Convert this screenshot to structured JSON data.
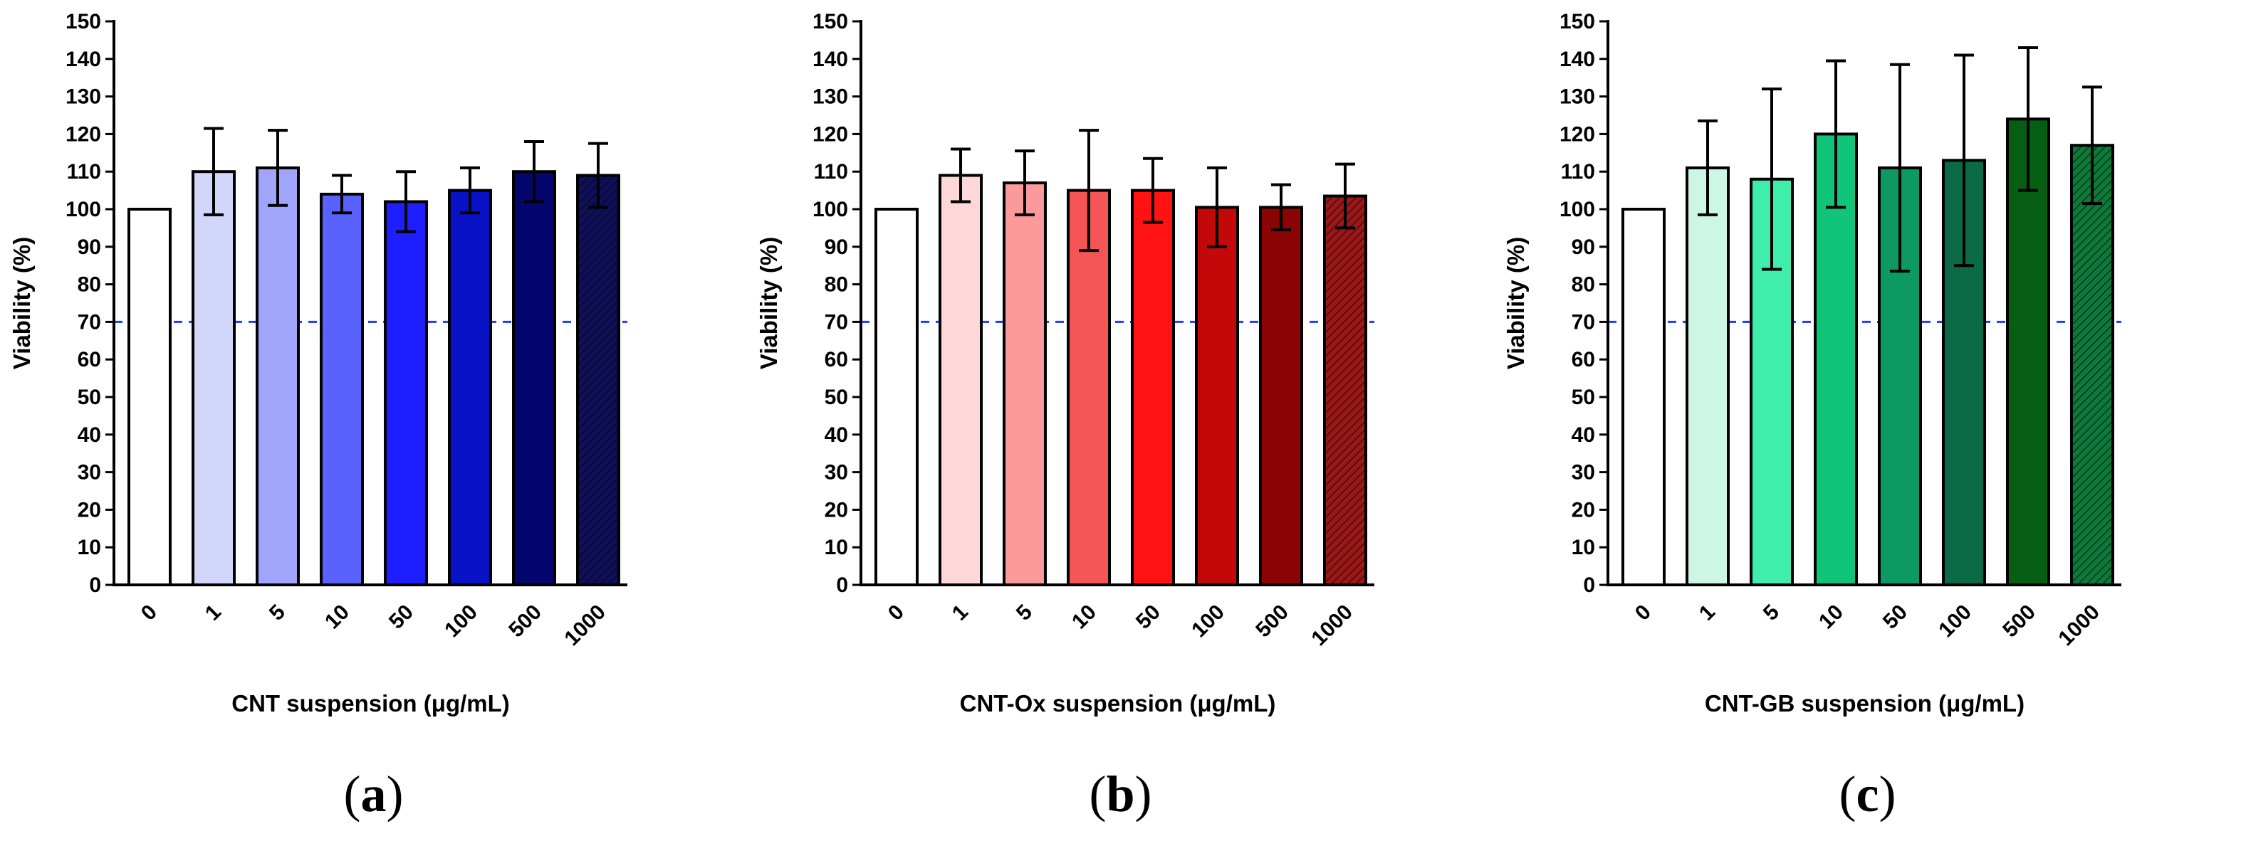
{
  "chart_data": [
    {
      "type": "bar",
      "panel_label": "a",
      "xlabel": "CNT suspension (μg/mL)",
      "ylabel": "Viability (%)",
      "ylim": [
        0,
        150
      ],
      "ytick_step": 10,
      "threshold": 70,
      "categories": [
        "0",
        "1",
        "5",
        "10",
        "50",
        "100",
        "500",
        "1000"
      ],
      "values": [
        100,
        110,
        111,
        104,
        102,
        105,
        110,
        109
      ],
      "errors": [
        0,
        11.5,
        10,
        5,
        8,
        6,
        8,
        8.5
      ],
      "colors": [
        "#ffffff",
        "#d3d6fb",
        "#a0a5fb",
        "#5a62fc",
        "#1e1eff",
        "#0a12c8",
        "#05056e",
        "#0f0f5a"
      ],
      "threshold_color": "#1a3cff"
    },
    {
      "type": "bar",
      "panel_label": "b",
      "xlabel": "CNT-Ox suspension (μg/mL)",
      "ylabel": "Viability (%)",
      "ylim": [
        0,
        150
      ],
      "ytick_step": 10,
      "threshold": 70,
      "categories": [
        "0",
        "1",
        "5",
        "10",
        "50",
        "100",
        "500",
        "1000"
      ],
      "values": [
        100,
        109,
        107,
        105,
        105,
        100.5,
        100.5,
        103.5
      ],
      "errors": [
        0,
        7,
        8.5,
        16,
        8.5,
        10.5,
        6,
        8.5
      ],
      "colors": [
        "#ffffff",
        "#fcd8d8",
        "#fb9a9a",
        "#f45555",
        "#ff1212",
        "#c20808",
        "#8a0404",
        "#9c1818"
      ],
      "threshold_color": "#1a3cff"
    },
    {
      "type": "bar",
      "panel_label": "c",
      "xlabel": "CNT-GB suspension (μg/mL)",
      "ylabel": "Viability (%)",
      "ylim": [
        0,
        150
      ],
      "ytick_step": 10,
      "threshold": 70,
      "categories": [
        "0",
        "1",
        "5",
        "10",
        "50",
        "100",
        "500",
        "1000"
      ],
      "values": [
        100,
        111,
        108,
        120,
        111,
        113,
        124,
        117
      ],
      "errors": [
        0,
        12.5,
        24,
        19.5,
        27.5,
        28,
        19,
        15.5
      ],
      "colors": [
        "#ffffff",
        "#cdf7e4",
        "#3feeaa",
        "#10c47a",
        "#0c9962",
        "#096a45",
        "#055e12",
        "#0e7a3a"
      ],
      "threshold_color": "#1a3cff"
    }
  ]
}
